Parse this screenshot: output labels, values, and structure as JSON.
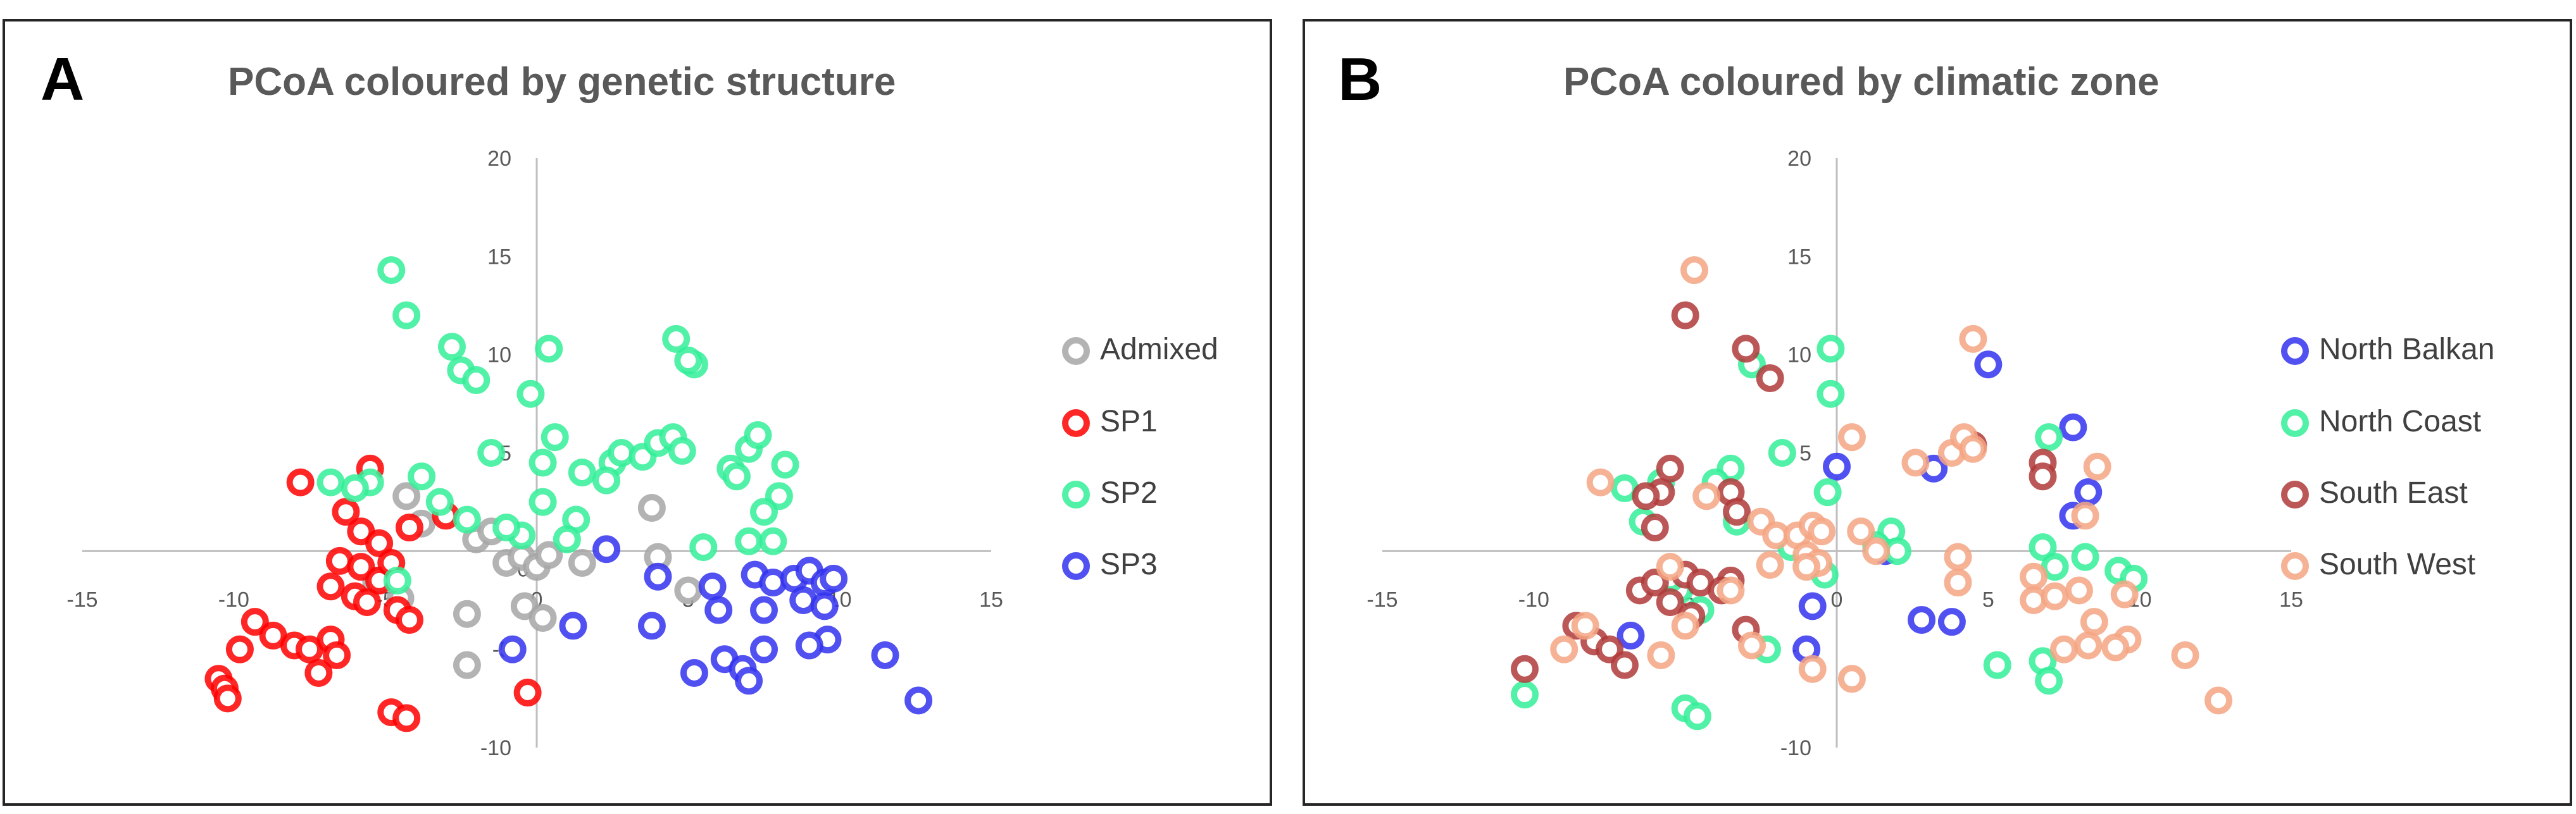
{
  "chart_data": [
    {
      "type": "scatter",
      "panel_label": "A",
      "title": "PCoA  coloured  by genetic  structure",
      "xlim": [
        -15,
        15
      ],
      "ylim": [
        -10,
        20
      ],
      "x_ticks": [
        -15,
        -10,
        -5,
        0,
        5,
        10,
        15
      ],
      "y_ticks": [
        -10,
        -5,
        0,
        5,
        10,
        15,
        20
      ],
      "xlabel": "",
      "ylabel": "",
      "legend_position": "right",
      "series": [
        {
          "name": "Admixed",
          "color": "#a6a6a6",
          "points": [
            [
              -4.3,
              2.8
            ],
            [
              -3.8,
              1.4
            ],
            [
              -2.0,
              0.6
            ],
            [
              -1.5,
              1.0
            ],
            [
              -1.0,
              -0.6
            ],
            [
              -0.5,
              -0.3
            ],
            [
              0.0,
              -0.8
            ],
            [
              0.4,
              -0.2
            ],
            [
              1.5,
              -0.6
            ],
            [
              3.8,
              2.2
            ],
            [
              4.0,
              -0.3
            ],
            [
              5.0,
              -2.0
            ],
            [
              -2.3,
              -3.2
            ],
            [
              -2.3,
              -5.8
            ],
            [
              -0.4,
              -2.8
            ],
            [
              0.2,
              -3.4
            ],
            [
              -4.5,
              -2.4
            ],
            [
              -5.3,
              -1.5
            ]
          ]
        },
        {
          "name": "SP1",
          "color": "#ff0000",
          "points": [
            [
              -7.8,
              3.5
            ],
            [
              -5.5,
              4.2
            ],
            [
              -3.0,
              1.8
            ],
            [
              -6.3,
              2.0
            ],
            [
              -5.8,
              1.0
            ],
            [
              -5.2,
              0.4
            ],
            [
              -4.2,
              1.2
            ],
            [
              -6.5,
              -0.5
            ],
            [
              -5.8,
              -0.8
            ],
            [
              -5.2,
              -1.5
            ],
            [
              -4.8,
              -0.6
            ],
            [
              -6.8,
              -1.8
            ],
            [
              -6.0,
              -2.3
            ],
            [
              -5.6,
              -2.6
            ],
            [
              -4.6,
              -3.0
            ],
            [
              -4.2,
              -3.5
            ],
            [
              -9.3,
              -3.6
            ],
            [
              -8.7,
              -4.3
            ],
            [
              -8.0,
              -4.8
            ],
            [
              -7.5,
              -5.0
            ],
            [
              -6.8,
              -4.5
            ],
            [
              -6.6,
              -5.3
            ],
            [
              -7.2,
              -6.2
            ],
            [
              -9.8,
              -5.0
            ],
            [
              -10.5,
              -6.5
            ],
            [
              -10.3,
              -7.0
            ],
            [
              -10.2,
              -7.5
            ],
            [
              -4.8,
              -8.2
            ],
            [
              -4.3,
              -8.5
            ],
            [
              -0.3,
              -7.2
            ]
          ]
        },
        {
          "name": "SP2",
          "color": "#33ee99",
          "points": [
            [
              -4.8,
              14.3
            ],
            [
              -4.3,
              12.0
            ],
            [
              -2.8,
              10.4
            ],
            [
              -2.5,
              9.2
            ],
            [
              -2.0,
              8.7
            ],
            [
              0.4,
              10.3
            ],
            [
              -0.2,
              8.0
            ],
            [
              0.6,
              5.8
            ],
            [
              0.2,
              4.5
            ],
            [
              -1.5,
              5.0
            ],
            [
              1.5,
              4.0
            ],
            [
              2.5,
              4.5
            ],
            [
              2.8,
              5.0
            ],
            [
              3.5,
              4.8
            ],
            [
              4.0,
              5.5
            ],
            [
              4.5,
              5.8
            ],
            [
              4.8,
              5.1
            ],
            [
              4.6,
              10.8
            ],
            [
              5.2,
              9.5
            ],
            [
              5.0,
              9.7
            ],
            [
              6.4,
              4.2
            ],
            [
              6.6,
              3.8
            ],
            [
              7.0,
              5.2
            ],
            [
              7.3,
              5.9
            ],
            [
              8.2,
              4.4
            ],
            [
              8.0,
              2.8
            ],
            [
              7.5,
              2.0
            ],
            [
              7.0,
              0.5
            ],
            [
              7.8,
              0.5
            ],
            [
              5.5,
              0.2
            ],
            [
              2.3,
              3.6
            ],
            [
              1.3,
              1.6
            ],
            [
              1.0,
              0.6
            ],
            [
              0.2,
              2.5
            ],
            [
              -0.5,
              0.8
            ],
            [
              -1.0,
              1.2
            ],
            [
              -2.3,
              1.6
            ],
            [
              -3.2,
              2.5
            ],
            [
              -3.8,
              3.8
            ],
            [
              -5.5,
              3.5
            ],
            [
              -6.0,
              3.2
            ],
            [
              -6.8,
              3.5
            ],
            [
              -4.6,
              -1.5
            ]
          ]
        },
        {
          "name": "SP3",
          "color": "#3333ee",
          "points": [
            [
              2.3,
              0.1
            ],
            [
              4.0,
              -1.3
            ],
            [
              3.8,
              -3.8
            ],
            [
              1.2,
              -3.8
            ],
            [
              -0.8,
              -5.0
            ],
            [
              5.8,
              -1.8
            ],
            [
              6.0,
              -3.0
            ],
            [
              5.2,
              -6.2
            ],
            [
              6.2,
              -5.5
            ],
            [
              6.8,
              -6.0
            ],
            [
              7.0,
              -6.6
            ],
            [
              7.5,
              -5.0
            ],
            [
              7.5,
              -3.0
            ],
            [
              7.2,
              -1.2
            ],
            [
              7.8,
              -1.6
            ],
            [
              8.5,
              -1.4
            ],
            [
              9.0,
              -1.0
            ],
            [
              9.5,
              -1.6
            ],
            [
              9.8,
              -1.4
            ],
            [
              8.8,
              -2.5
            ],
            [
              9.5,
              -2.8
            ],
            [
              9.6,
              -4.5
            ],
            [
              9.0,
              -4.8
            ],
            [
              11.5,
              -5.3
            ],
            [
              12.6,
              -7.6
            ]
          ]
        }
      ]
    },
    {
      "type": "scatter",
      "panel_label": "B",
      "title": "PCoA coloured by climatic zone",
      "xlim": [
        -15,
        15
      ],
      "ylim": [
        -10,
        20
      ],
      "x_ticks": [
        -15,
        -10,
        -5,
        0,
        5,
        10,
        15
      ],
      "y_ticks": [
        -10,
        -5,
        0,
        5,
        10,
        15,
        20
      ],
      "xlabel": "",
      "ylabel": "",
      "legend_position": "right",
      "series": [
        {
          "name": "North Balkan",
          "color": "#3333ee",
          "points": [
            [
              5.0,
              9.5
            ],
            [
              7.8,
              6.3
            ],
            [
              8.3,
              3.0
            ],
            [
              7.8,
              1.8
            ],
            [
              3.2,
              4.2
            ],
            [
              0.0,
              4.3
            ],
            [
              1.6,
              0.0
            ],
            [
              2.8,
              -3.5
            ],
            [
              3.8,
              -3.6
            ],
            [
              -0.8,
              -2.8
            ],
            [
              -1.0,
              -5.0
            ],
            [
              -6.8,
              -4.3
            ]
          ]
        },
        {
          "name": "North Coast",
          "color": "#33ee99",
          "points": [
            [
              -0.2,
              10.3
            ],
            [
              -0.2,
              8.0
            ],
            [
              -2.8,
              9.5
            ],
            [
              -1.8,
              5.0
            ],
            [
              -5.8,
              3.5
            ],
            [
              -3.5,
              4.2
            ],
            [
              -4.0,
              3.5
            ],
            [
              -7.0,
              3.2
            ],
            [
              -6.4,
              1.5
            ],
            [
              -3.3,
              1.5
            ],
            [
              -0.3,
              3.0
            ],
            [
              1.8,
              1.0
            ],
            [
              1.3,
              0.3
            ],
            [
              2.0,
              0.0
            ],
            [
              -1.5,
              0.2
            ],
            [
              -0.4,
              -1.2
            ],
            [
              -5.2,
              -2.0
            ],
            [
              -4.5,
              -3.0
            ],
            [
              -5.5,
              -1.4
            ],
            [
              -2.3,
              -5.0
            ],
            [
              -5.0,
              -8.0
            ],
            [
              -4.6,
              -8.4
            ],
            [
              -10.3,
              -7.3
            ],
            [
              5.3,
              -5.8
            ],
            [
              6.8,
              -5.6
            ],
            [
              7.0,
              -6.6
            ],
            [
              7.0,
              5.8
            ],
            [
              6.8,
              0.2
            ],
            [
              7.2,
              -0.8
            ],
            [
              9.3,
              -1.0
            ],
            [
              9.8,
              -1.4
            ],
            [
              8.2,
              -0.3
            ]
          ]
        },
        {
          "name": "South East",
          "color": "#b03a3a",
          "points": [
            [
              -5.0,
              12.0
            ],
            [
              -3.0,
              10.3
            ],
            [
              -2.2,
              8.8
            ],
            [
              -5.5,
              4.2
            ],
            [
              -5.8,
              3.0
            ],
            [
              -3.5,
              3.0
            ],
            [
              -3.3,
              2.0
            ],
            [
              -6.3,
              2.8
            ],
            [
              -6.0,
              1.2
            ],
            [
              -6.5,
              -2.0
            ],
            [
              -6.0,
              -1.6
            ],
            [
              -5.5,
              -2.6
            ],
            [
              -5.0,
              -1.2
            ],
            [
              -4.5,
              -1.6
            ],
            [
              -3.5,
              -1.5
            ],
            [
              -3.8,
              -2.0
            ],
            [
              -3.0,
              -4.0
            ],
            [
              -4.8,
              -3.3
            ],
            [
              -8.6,
              -3.8
            ],
            [
              -8.0,
              -4.6
            ],
            [
              -7.5,
              -5.0
            ],
            [
              -7.0,
              -5.8
            ],
            [
              -10.3,
              -6.0
            ],
            [
              4.5,
              5.4
            ],
            [
              6.8,
              4.5
            ],
            [
              6.8,
              3.8
            ]
          ]
        },
        {
          "name": "South West",
          "color": "#f4a582",
          "points": [
            [
              -4.7,
              14.3
            ],
            [
              4.5,
              10.8
            ],
            [
              0.5,
              5.8
            ],
            [
              2.6,
              4.5
            ],
            [
              3.8,
              5.0
            ],
            [
              4.2,
              5.8
            ],
            [
              4.5,
              5.2
            ],
            [
              8.6,
              4.3
            ],
            [
              8.2,
              1.8
            ],
            [
              -7.8,
              3.5
            ],
            [
              -4.3,
              2.8
            ],
            [
              -2.5,
              1.5
            ],
            [
              -2.0,
              0.8
            ],
            [
              -1.3,
              0.8
            ],
            [
              -0.8,
              1.3
            ],
            [
              -0.5,
              1.0
            ],
            [
              0.8,
              1.0
            ],
            [
              1.3,
              0.0
            ],
            [
              -1.0,
              -0.2
            ],
            [
              -0.6,
              -0.6
            ],
            [
              -2.2,
              -0.7
            ],
            [
              -1.0,
              -0.8
            ],
            [
              4.0,
              -0.3
            ],
            [
              4.0,
              -1.6
            ],
            [
              6.5,
              -1.3
            ],
            [
              -5.5,
              -0.8
            ],
            [
              -3.5,
              -2.0
            ],
            [
              -5.0,
              -3.8
            ],
            [
              -8.3,
              -3.8
            ],
            [
              -9.0,
              -5.0
            ],
            [
              -5.8,
              -5.3
            ],
            [
              -2.8,
              -4.8
            ],
            [
              -0.8,
              -6.0
            ],
            [
              0.5,
              -6.5
            ],
            [
              6.5,
              -2.5
            ],
            [
              7.2,
              -2.3
            ],
            [
              8.0,
              -2.0
            ],
            [
              8.5,
              -3.6
            ],
            [
              9.5,
              -2.2
            ],
            [
              9.6,
              -4.5
            ],
            [
              9.2,
              -4.9
            ],
            [
              7.5,
              -5.0
            ],
            [
              11.5,
              -5.3
            ],
            [
              12.6,
              -7.6
            ],
            [
              8.3,
              -4.8
            ]
          ]
        }
      ]
    }
  ]
}
